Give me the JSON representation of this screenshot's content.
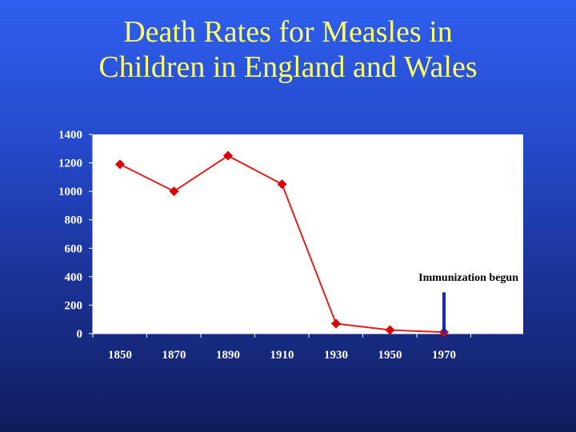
{
  "slide": {
    "title_line1": "Death Rates for Measles in",
    "title_line2": "Children in England and Wales"
  },
  "colors": {
    "title": "#ffff66",
    "plot_background": "#ffffff",
    "series_line": "#e02020",
    "marker": "#dd0000",
    "annotation_bar": "#1428c8",
    "tick_text": "#ffffff"
  },
  "chart_data": {
    "type": "line",
    "title": "",
    "xlabel": "",
    "ylabel": "",
    "categories": [
      "1850",
      "1870",
      "1890",
      "1910",
      "1930",
      "1950",
      "1970"
    ],
    "series": [
      {
        "values": [
          1190,
          1000,
          1250,
          1050,
          70,
          25,
          10
        ]
      }
    ],
    "y_ticks": [
      0,
      200,
      400,
      600,
      800,
      1000,
      1200,
      1400
    ],
    "ylim": [
      0,
      1400
    ],
    "grid": false,
    "legend": "none",
    "annotation": {
      "text": "Immunization begun",
      "at_category": "1970",
      "marker_value": 290
    }
  }
}
